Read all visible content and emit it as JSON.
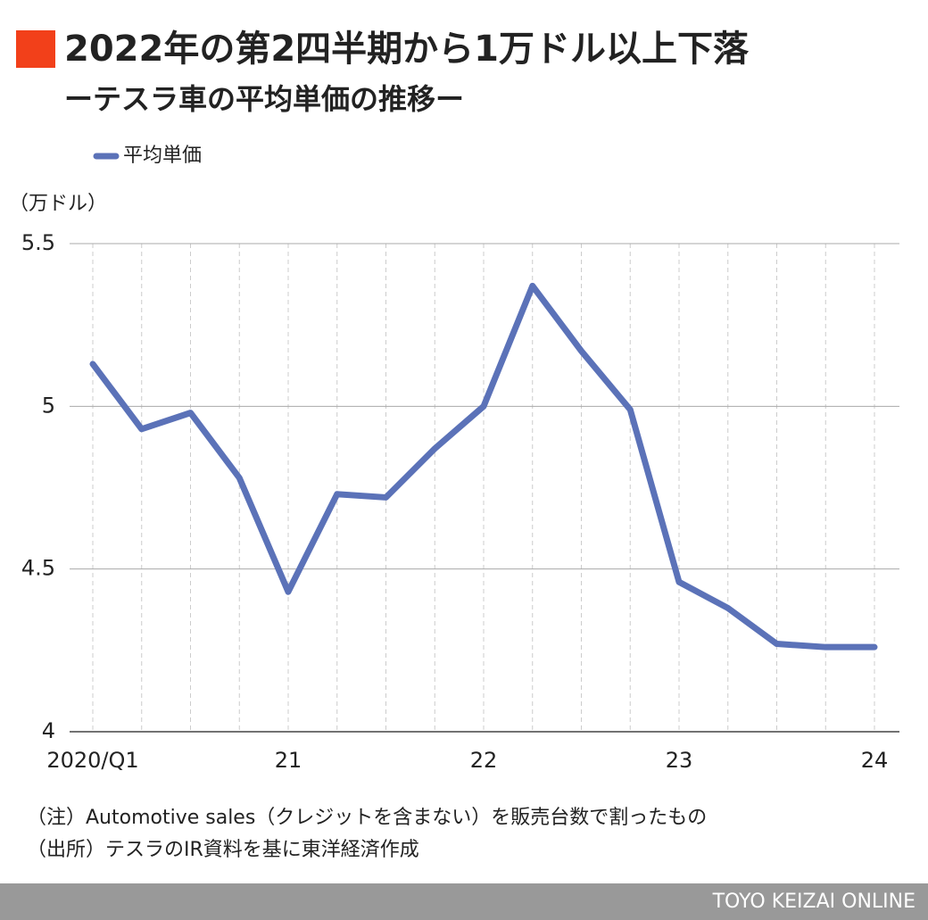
{
  "chart_data": {
    "type": "line",
    "title": "2022年の第2四半期から1万ドル以上下落",
    "subtitle": "ーテスラ車の平均単価の推移ー",
    "y_label": "（万ドル）",
    "categories": [
      "2020/Q1",
      null,
      null,
      null,
      "21",
      null,
      null,
      null,
      "22",
      null,
      null,
      null,
      "23",
      null,
      null,
      null,
      "24"
    ],
    "series": [
      {
        "name": "平均単価",
        "color": "#5b72b8",
        "values": [
          5.13,
          4.93,
          4.98,
          4.78,
          4.43,
          4.73,
          4.72,
          4.87,
          5.0,
          5.37,
          5.17,
          4.99,
          4.46,
          4.38,
          4.27,
          4.26,
          4.26
        ]
      }
    ],
    "ylim": [
      4,
      5.5
    ],
    "yticks": [
      4,
      4.5,
      5,
      5.5
    ],
    "grid": true,
    "legend": "top-left"
  },
  "notes": [
    "（注）Automotive sales（クレジットを含まない）を販売台数で割ったもの",
    "（出所）テスラのIR資料を基に東洋経済作成"
  ],
  "credit": "TOYO KEIZAI ONLINE"
}
